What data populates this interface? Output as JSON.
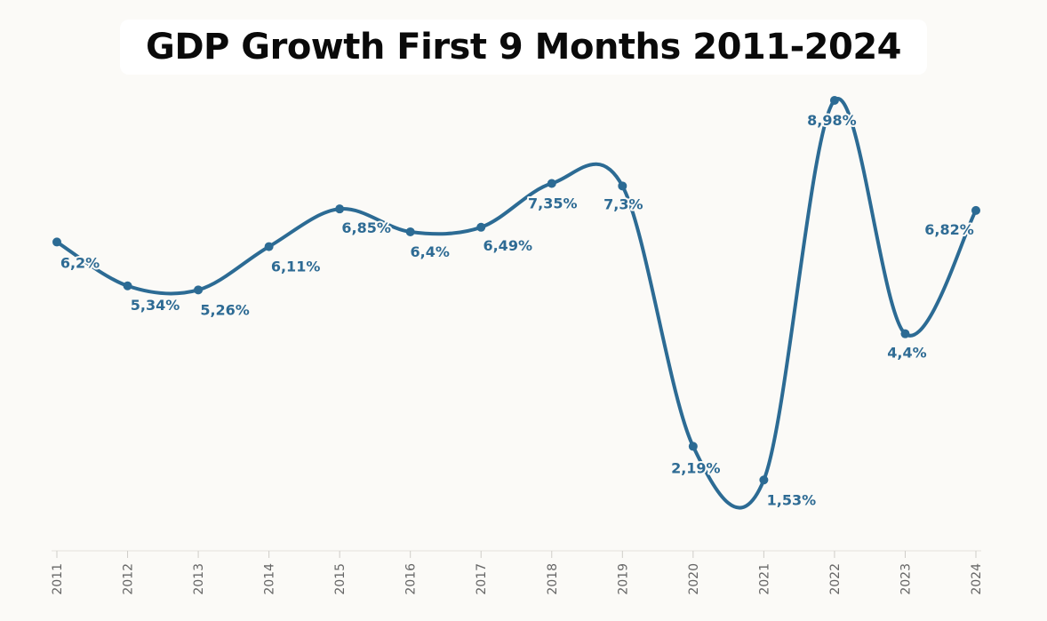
{
  "title": "GDP Growth First 9 Months 2011-2024",
  "colors": {
    "line": "#2c6b94",
    "label": "#2e6b94",
    "background": "#fbfaf7"
  },
  "chart_data": {
    "type": "line",
    "title": "GDP Growth First 9 Months 2011-2024",
    "xlabel": "",
    "ylabel": "",
    "x": [
      "2011",
      "2012",
      "2013",
      "2014",
      "2015",
      "2016",
      "2017",
      "2018",
      "2019",
      "2020",
      "2021",
      "2022",
      "2023",
      "2024"
    ],
    "values": [
      6.2,
      5.34,
      5.26,
      6.11,
      6.85,
      6.4,
      6.49,
      7.35,
      7.3,
      2.19,
      1.53,
      8.98,
      4.4,
      6.82
    ],
    "labels": [
      "6,2%",
      "5,34%",
      "5,26%",
      "6,11%",
      "6,85%",
      "6,4%",
      "6,49%",
      "7,35%",
      "7,3%",
      "2,19%",
      "1,53%",
      "8,98%",
      "4,4%",
      "6,82%"
    ],
    "ylim": [
      0,
      9.4
    ],
    "grid": false,
    "legend": "none"
  }
}
